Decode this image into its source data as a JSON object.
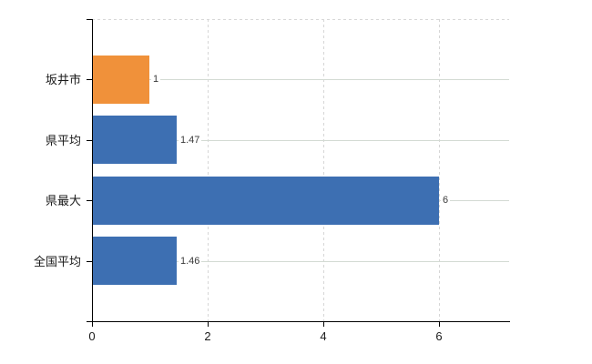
{
  "chart_data": {
    "type": "bar",
    "orientation": "horizontal",
    "title": "",
    "categories": [
      "坂井市",
      "県平均",
      "県最大",
      "全国平均"
    ],
    "values": [
      1,
      1.47,
      6,
      1.46
    ],
    "value_labels": [
      "1",
      "1.47",
      "6",
      "1.46"
    ],
    "bar_colors": [
      "#f0913a",
      "#3d6fb2",
      "#3d6fb2",
      "#3d6fb2"
    ],
    "x_ticks": [
      0,
      2,
      4,
      6
    ],
    "x_tick_labels": [
      "0",
      "2",
      "4",
      "6"
    ],
    "xlim": [
      0,
      7.23
    ],
    "grid": {
      "vertical_dashed": true,
      "horizontal_category_lines": true,
      "top_boundary_dashed": true
    },
    "legend": "none",
    "accent_colors": {
      "highlight_bar": "#f0913a",
      "default_bar": "#3d6fb2",
      "axis": "#000000",
      "grid_vertical": "#d6d6d6",
      "grid_horizontal": "#d3dad3"
    }
  }
}
